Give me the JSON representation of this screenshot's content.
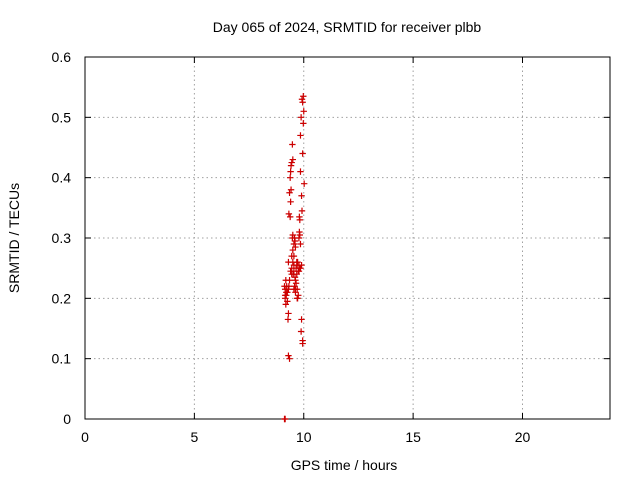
{
  "chart_data": {
    "type": "scatter",
    "title": "Day 065 of 2024, SRMTID for receiver plbb",
    "xlabel": "GPS time / hours",
    "ylabel": "SRMTID / TECUs",
    "xlim": [
      0,
      24
    ],
    "ylim": [
      0,
      0.6
    ],
    "xticks": [
      0,
      5,
      10,
      15,
      20
    ],
    "yticks": [
      0,
      0.1,
      0.2,
      0.3,
      0.4,
      0.5,
      0.6
    ],
    "grid": true,
    "marker": "plus",
    "color": "#cc0000",
    "x": [
      9.12,
      9.15,
      9.18,
      9.15,
      9.25,
      9.2,
      9.15,
      9.22,
      9.18,
      9.28,
      9.3,
      9.35,
      9.3,
      9.25,
      9.2,
      9.3,
      9.32,
      9.35,
      9.32,
      9.38,
      9.4,
      9.42,
      9.35,
      9.4,
      9.38,
      9.45,
      9.5,
      9.48,
      9.42,
      9.45,
      9.5,
      9.55,
      9.52,
      9.45,
      9.5,
      9.55,
      9.6,
      9.58,
      9.62,
      9.55,
      9.6,
      9.65,
      9.62,
      9.58,
      9.65,
      9.7,
      9.68,
      9.62,
      9.55,
      9.5,
      9.48,
      9.72,
      9.75,
      9.7,
      9.68,
      9.75,
      9.8,
      9.78,
      9.72,
      9.8,
      9.82,
      9.78,
      9.85,
      9.82,
      9.8,
      9.85,
      9.88,
      9.85,
      9.9,
      9.92,
      9.9,
      9.88,
      9.95,
      9.95,
      9.92,
      9.98,
      9.95,
      10.0,
      9.98,
      9.95,
      10.02,
      9.9,
      9.85,
      9.78,
      9.7,
      9.62,
      9.55,
      9.45,
      9.4,
      9.3,
      9.12,
      9.15
    ],
    "y": [
      0.0,
      0.0,
      0.19,
      0.2,
      0.21,
      0.21,
      0.215,
      0.22,
      0.23,
      0.165,
      0.175,
      0.1,
      0.105,
      0.195,
      0.205,
      0.215,
      0.22,
      0.23,
      0.34,
      0.335,
      0.36,
      0.38,
      0.375,
      0.41,
      0.4,
      0.425,
      0.43,
      0.455,
      0.42,
      0.27,
      0.26,
      0.255,
      0.24,
      0.25,
      0.28,
      0.29,
      0.295,
      0.3,
      0.285,
      0.245,
      0.235,
      0.225,
      0.215,
      0.22,
      0.25,
      0.255,
      0.26,
      0.23,
      0.27,
      0.305,
      0.3,
      0.2,
      0.205,
      0.215,
      0.24,
      0.245,
      0.25,
      0.255,
      0.26,
      0.31,
      0.305,
      0.3,
      0.29,
      0.33,
      0.335,
      0.47,
      0.5,
      0.41,
      0.37,
      0.345,
      0.165,
      0.145,
      0.125,
      0.13,
      0.53,
      0.535,
      0.525,
      0.51,
      0.49,
      0.44,
      0.39,
      0.255,
      0.25,
      0.245,
      0.2,
      0.21,
      0.215,
      0.24,
      0.245,
      0.26,
      0.22,
      0.205
    ]
  }
}
